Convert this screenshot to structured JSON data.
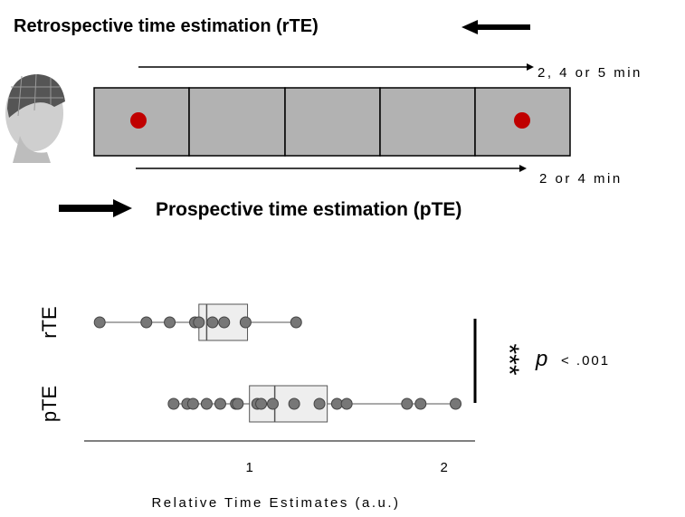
{
  "diagram": {
    "retro_title": "Retrospective time estimation (rTE)",
    "retro_duration": "2, 4 or 5 min",
    "pro_duration": "2 or 4 min",
    "pro_title": "Prospective time estimation (pTE)"
  },
  "chart_data": {
    "type": "box",
    "categories": [
      "rTE",
      "pTE"
    ],
    "x_label": "Relative Time Estimates (a.u.)",
    "xlim": [
      0.15,
      2.16
    ],
    "xticks": [
      1,
      2
    ],
    "points": [
      [
        0.23,
        0.47,
        0.59,
        0.72,
        0.74,
        0.81,
        0.87,
        0.98,
        1.24
      ],
      [
        0.61,
        0.68,
        0.71,
        0.78,
        0.85,
        0.93,
        0.94,
        1.04,
        1.06,
        1.12,
        1.23,
        1.36,
        1.45,
        1.5,
        1.81,
        1.88,
        2.06
      ]
    ],
    "boxes": [
      {
        "whislo": 0.23,
        "q1": 0.74,
        "med": 0.78,
        "q3": 0.99,
        "whishi": 1.24
      },
      {
        "whislo": 0.61,
        "q1": 1.0,
        "med": 1.13,
        "q3": 1.4,
        "whishi": 2.06
      }
    ],
    "box_color": "#eeeeee",
    "point_color": "#777777",
    "significance": "***",
    "p_symbol": "p",
    "p_value": "< .001"
  }
}
